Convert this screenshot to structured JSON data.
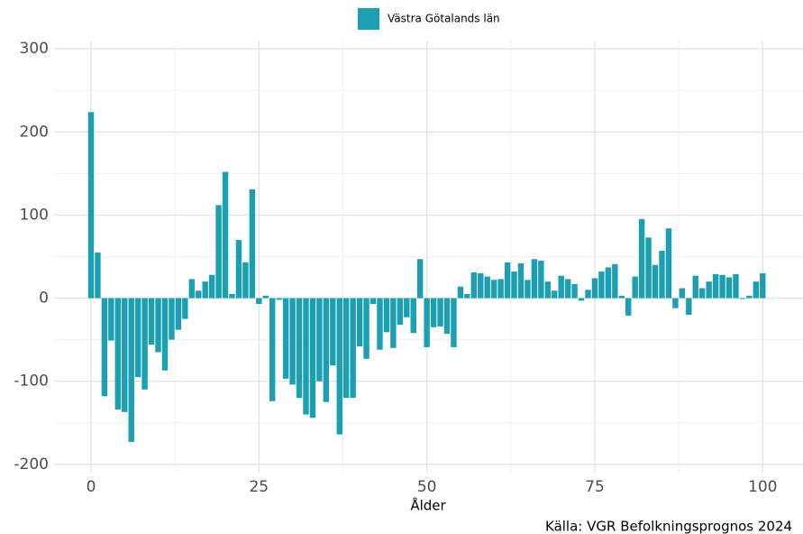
{
  "chart_data": {
    "type": "bar",
    "x": [
      0,
      1,
      2,
      3,
      4,
      5,
      6,
      7,
      8,
      9,
      10,
      11,
      12,
      13,
      14,
      15,
      16,
      17,
      18,
      19,
      20,
      21,
      22,
      23,
      24,
      25,
      26,
      27,
      28,
      29,
      30,
      31,
      32,
      33,
      34,
      35,
      36,
      37,
      38,
      39,
      40,
      41,
      42,
      43,
      44,
      45,
      46,
      47,
      48,
      49,
      50,
      51,
      52,
      53,
      54,
      55,
      56,
      57,
      58,
      59,
      60,
      61,
      62,
      63,
      64,
      65,
      66,
      67,
      68,
      69,
      70,
      71,
      72,
      73,
      74,
      75,
      76,
      77,
      78,
      79,
      80,
      81,
      82,
      83,
      84,
      85,
      86,
      87,
      88,
      89,
      90,
      91,
      92,
      93,
      94,
      95,
      96,
      97,
      98,
      99,
      100
    ],
    "series": [
      {
        "name": "Västra Götalands län",
        "color": "#1b9fb3",
        "values": [
          224,
          55,
          -118,
          -51,
          -134,
          -137,
          -173,
          -95,
          -110,
          -56,
          -65,
          -87,
          -50,
          -38,
          -25,
          23,
          9,
          20,
          28,
          112,
          152,
          5,
          70,
          43,
          131,
          -7,
          3,
          -124,
          -2,
          -97,
          -104,
          -120,
          -140,
          -144,
          -100,
          -125,
          -81,
          -164,
          -120,
          -120,
          -58,
          -73,
          -7,
          -62,
          -41,
          -60,
          -32,
          -23,
          -42,
          47,
          -59,
          -35,
          -34,
          -43,
          -59,
          14,
          5,
          31,
          30,
          26,
          22,
          23,
          43,
          32,
          42,
          22,
          47,
          45,
          20,
          9,
          27,
          23,
          17,
          -3,
          10,
          24,
          32,
          37,
          41,
          3,
          -21,
          26,
          95,
          73,
          40,
          57,
          84,
          -12,
          12,
          -20,
          27,
          12,
          20,
          29,
          28,
          25,
          29,
          -1,
          3,
          20,
          30
        ]
      }
    ],
    "xlabel": "Ålder",
    "source": "Källa: VGR Befolkningsprognos 2024",
    "xlim": [
      -5.5,
      106
    ],
    "xticks": [
      0,
      25,
      50,
      75,
      100
    ],
    "ylim": [
      -210,
      310
    ],
    "yticks": [
      -200,
      -100,
      0,
      100,
      200,
      300
    ],
    "grid": true,
    "legend": "top"
  }
}
